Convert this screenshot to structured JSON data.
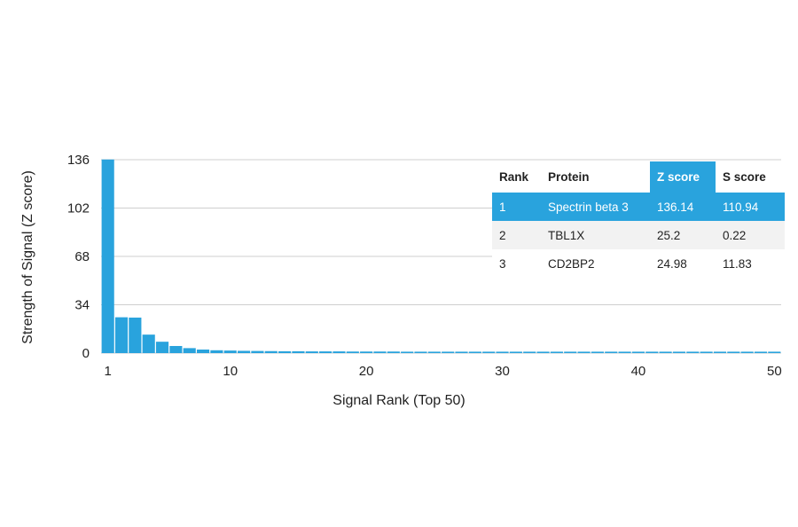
{
  "chart_data": {
    "type": "bar",
    "title": "",
    "xlabel": "Signal Rank (Top 50)",
    "ylabel": "Strength of Signal (Z score)",
    "ylim": [
      0,
      136
    ],
    "yticks": [
      0,
      34,
      68,
      102,
      136
    ],
    "xticks": [
      1,
      10,
      20,
      30,
      40,
      50
    ],
    "xlim": [
      1,
      50
    ],
    "grid": true,
    "bar_color": "#29a3dd",
    "x": [
      1,
      2,
      3,
      4,
      5,
      6,
      7,
      8,
      9,
      10,
      11,
      12,
      13,
      14,
      15,
      16,
      17,
      18,
      19,
      20,
      21,
      22,
      23,
      24,
      25,
      26,
      27,
      28,
      29,
      30,
      31,
      32,
      33,
      34,
      35,
      36,
      37,
      38,
      39,
      40,
      41,
      42,
      43,
      44,
      45,
      46,
      47,
      48,
      49,
      50
    ],
    "values": [
      136.14,
      25.2,
      24.98,
      13,
      8,
      5,
      3.5,
      2.5,
      2,
      1.8,
      1.6,
      1.5,
      1.4,
      1.3,
      1.3,
      1.2,
      1.2,
      1.2,
      1.1,
      1.1,
      1.1,
      1.1,
      1.0,
      1.0,
      1.0,
      1.0,
      1.0,
      1.0,
      1.0,
      1.0,
      1.0,
      1.0,
      1.0,
      1.0,
      1.0,
      1.0,
      1.0,
      1.0,
      1.0,
      1.0,
      1.0,
      1.0,
      1.0,
      1.0,
      1.0,
      1.0,
      1.0,
      1.0,
      1.0,
      1.0
    ]
  },
  "table": {
    "columns": [
      "Rank",
      "Protein",
      "Z score",
      "S score"
    ],
    "highlight_color": "#29a3dd",
    "rows": [
      [
        "1",
        "Spectrin beta 3",
        "136.14",
        "110.94"
      ],
      [
        "2",
        "TBL1X",
        "25.2",
        "0.22"
      ],
      [
        "3",
        "CD2BP2",
        "24.98",
        "11.83"
      ]
    ]
  }
}
